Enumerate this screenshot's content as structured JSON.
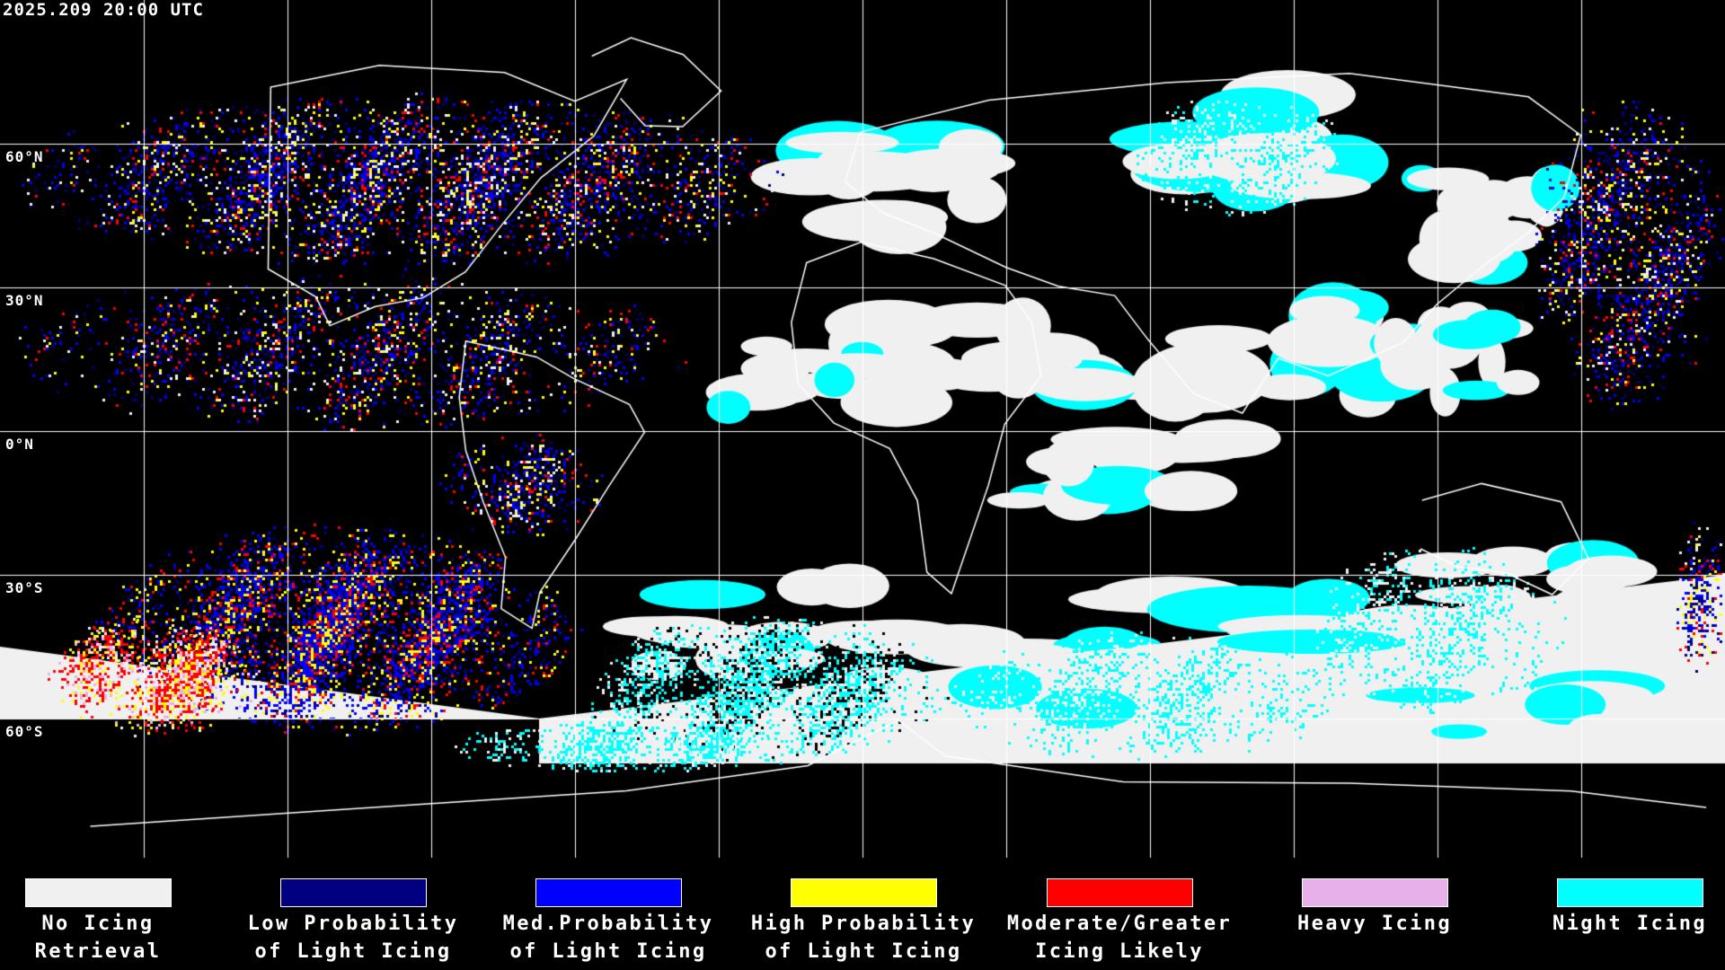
{
  "timestamp": "2025.209 20:00 UTC",
  "map": {
    "latitude_labels": [
      "60°N",
      "30°N",
      "0°N",
      "30°S",
      "60°S"
    ],
    "gridline_spacing_degrees": 30,
    "coastline_color": "#ffffff",
    "grid_color": "#ffffff",
    "background_color": "#000000"
  },
  "legend": [
    {
      "line1": "No Icing",
      "line2": "Retrieval",
      "color": "#f0f0f0"
    },
    {
      "line1": "Low Probability",
      "line2": "of Light Icing",
      "color": "#000080"
    },
    {
      "line1": "Med.Probability",
      "line2": "of Light Icing",
      "color": "#0000ff"
    },
    {
      "line1": "High Probability",
      "line2": "of Light Icing",
      "color": "#ffff00"
    },
    {
      "line1": "Moderate/Greater",
      "line2": "Icing Likely",
      "color": "#ff0000"
    },
    {
      "line1": "Heavy Icing",
      "line2": "",
      "color": "#e8b0e8"
    },
    {
      "line1": "Night Icing",
      "line2": "",
      "color": "#00ffff"
    }
  ]
}
